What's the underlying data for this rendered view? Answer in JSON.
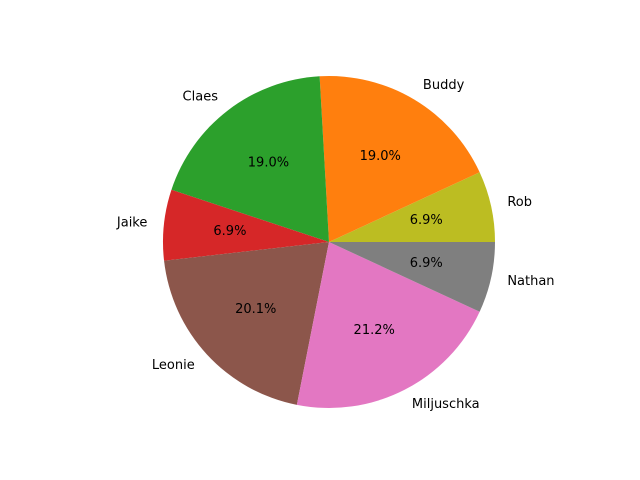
{
  "chart_data": {
    "type": "pie",
    "start_angle_deg": 0,
    "direction": "counterclockwise",
    "slices": [
      {
        "label": "Rob",
        "percent": 6.9,
        "percent_label": "6.9%",
        "color": "#bcbd22"
      },
      {
        "label": "Buddy",
        "percent": 19.0,
        "percent_label": "19.0%",
        "color": "#ff7f0e"
      },
      {
        "label": "Claes",
        "percent": 19.0,
        "percent_label": "19.0%",
        "color": "#2ca02c"
      },
      {
        "label": "Jaike",
        "percent": 6.9,
        "percent_label": "6.9%",
        "color": "#d62728"
      },
      {
        "label": "Leonie",
        "percent": 20.1,
        "percent_label": "20.1%",
        "color": "#8c564b"
      },
      {
        "label": "Miljuschka",
        "percent": 21.2,
        "percent_label": "21.2%",
        "color": "#e377c2"
      },
      {
        "label": "Nathan",
        "percent": 6.9,
        "percent_label": "6.9%",
        "color": "#7f7f7f"
      }
    ]
  }
}
